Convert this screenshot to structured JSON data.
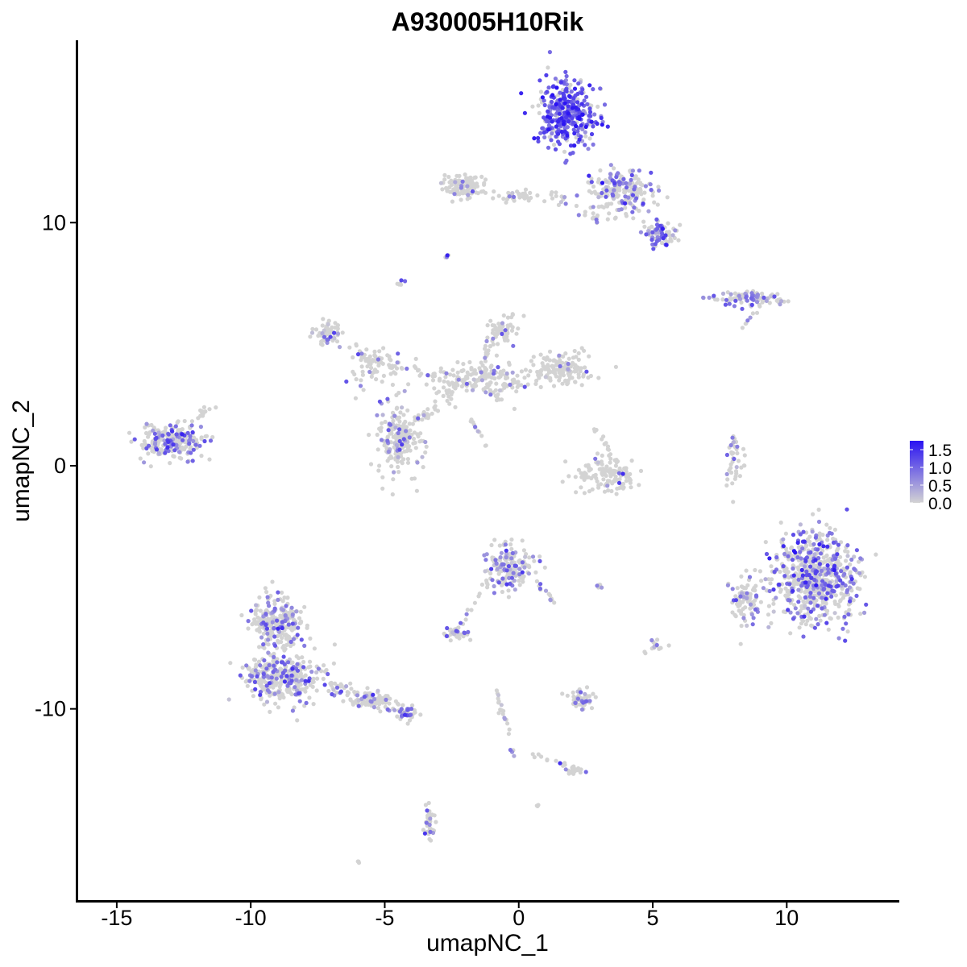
{
  "chart_data": {
    "type": "scatter",
    "title": "A930005H10Rik",
    "xlabel": "umapNC_1",
    "ylabel": "umapNC_2",
    "xlim": [
      -16.5,
      14.2
    ],
    "ylim": [
      -17.9,
      17.5
    ],
    "x_ticks": [
      -15,
      -10,
      -5,
      0,
      5,
      10
    ],
    "y_ticks": [
      -10,
      0,
      10
    ],
    "grid": false,
    "legend": {
      "position": "right",
      "type": "colorbar",
      "ticks": [
        1.5,
        1.0,
        0.5,
        0.0
      ],
      "tick_labels": [
        "1.5",
        "1.0",
        "0.5",
        "0.0"
      ],
      "range": [
        0,
        1.75
      ]
    },
    "color_scale": {
      "low": "#d3d3d3",
      "high": "#2a13f2"
    },
    "seed": 42,
    "clusters": [
      {
        "cx": 1.8,
        "cy": 14.5,
        "sx": 1.0,
        "sy": 1.2,
        "n": 360,
        "expr_frac": 0.8,
        "expr_mean": 1.1
      },
      {
        "cx": 3.8,
        "cy": 11.2,
        "sx": 1.0,
        "sy": 0.8,
        "n": 200,
        "expr_frac": 0.35,
        "expr_mean": 0.8
      },
      {
        "cx": 5.3,
        "cy": 9.5,
        "sx": 0.5,
        "sy": 0.5,
        "n": 80,
        "expr_frac": 0.4,
        "expr_mean": 0.8
      },
      {
        "cx": -2.1,
        "cy": 11.5,
        "sx": 0.6,
        "sy": 0.4,
        "n": 90,
        "expr_frac": 0.12,
        "expr_mean": 0.7
      },
      {
        "cx": 0.0,
        "cy": 11.1,
        "sx": 0.7,
        "sy": 0.2,
        "n": 30,
        "expr_frac": 0.1,
        "expr_mean": 0.7
      },
      {
        "cx": 8.5,
        "cy": 6.9,
        "sx": 1.1,
        "sy": 0.25,
        "n": 100,
        "expr_frac": 0.4,
        "expr_mean": 0.7
      },
      {
        "cx": -7.1,
        "cy": 5.4,
        "sx": 0.5,
        "sy": 0.5,
        "n": 60,
        "expr_frac": 0.2,
        "expr_mean": 0.7
      },
      {
        "cx": -5.4,
        "cy": 4.0,
        "sx": 0.8,
        "sy": 0.6,
        "n": 60,
        "expr_frac": 0.15,
        "expr_mean": 0.7
      },
      {
        "cx": -1.3,
        "cy": 3.5,
        "sx": 1.5,
        "sy": 0.7,
        "n": 160,
        "expr_frac": 0.08,
        "expr_mean": 0.7
      },
      {
        "cx": -0.6,
        "cy": 5.5,
        "sx": 0.45,
        "sy": 0.5,
        "n": 55,
        "expr_frac": 0.1,
        "expr_mean": 0.7
      },
      {
        "cx": 1.6,
        "cy": 4.0,
        "sx": 1.0,
        "sy": 0.5,
        "n": 150,
        "expr_frac": 0.05,
        "expr_mean": 0.6
      },
      {
        "cx": -4.5,
        "cy": 1.0,
        "sx": 0.7,
        "sy": 1.2,
        "n": 200,
        "expr_frac": 0.18,
        "expr_mean": 0.7
      },
      {
        "cx": -13.0,
        "cy": 1.0,
        "sx": 1.0,
        "sy": 0.55,
        "n": 230,
        "expr_frac": 0.28,
        "expr_mean": 0.8
      },
      {
        "cx": 3.3,
        "cy": -0.4,
        "sx": 1.0,
        "sy": 0.65,
        "n": 130,
        "expr_frac": 0.07,
        "expr_mean": 0.7
      },
      {
        "cx": 8.1,
        "cy": 0.0,
        "sx": 0.25,
        "sy": 0.9,
        "n": 30,
        "expr_frac": 0.25,
        "expr_mean": 0.7
      },
      {
        "cx": 11.0,
        "cy": -4.6,
        "sx": 1.4,
        "sy": 1.5,
        "n": 700,
        "expr_frac": 0.33,
        "expr_mean": 0.9
      },
      {
        "cx": 8.4,
        "cy": -5.5,
        "sx": 0.5,
        "sy": 1.0,
        "n": 80,
        "expr_frac": 0.3,
        "expr_mean": 0.8
      },
      {
        "cx": -0.3,
        "cy": -4.2,
        "sx": 0.8,
        "sy": 0.8,
        "n": 160,
        "expr_frac": 0.35,
        "expr_mean": 0.8
      },
      {
        "cx": -2.4,
        "cy": -6.9,
        "sx": 0.35,
        "sy": 0.2,
        "n": 35,
        "expr_frac": 0.3,
        "expr_mean": 0.8
      },
      {
        "cx": -9.0,
        "cy": -6.5,
        "sx": 0.8,
        "sy": 0.8,
        "n": 200,
        "expr_frac": 0.3,
        "expr_mean": 0.8
      },
      {
        "cx": -8.8,
        "cy": -8.7,
        "sx": 1.1,
        "sy": 0.8,
        "n": 320,
        "expr_frac": 0.3,
        "expr_mean": 0.8
      },
      {
        "cx": -5.5,
        "cy": -9.6,
        "sx": 0.6,
        "sy": 0.3,
        "n": 60,
        "expr_frac": 0.15,
        "expr_mean": 0.7
      },
      {
        "cx": -4.2,
        "cy": -10.2,
        "sx": 0.3,
        "sy": 0.2,
        "n": 20,
        "expr_frac": 0.4,
        "expr_mean": 0.8
      },
      {
        "cx": 2.3,
        "cy": -9.6,
        "sx": 0.4,
        "sy": 0.3,
        "n": 55,
        "expr_frac": 0.2,
        "expr_mean": 0.7
      },
      {
        "cx": 2.1,
        "cy": -12.6,
        "sx": 0.3,
        "sy": 0.15,
        "n": 15,
        "expr_frac": 0.1,
        "expr_mean": 0.7
      },
      {
        "cx": -3.3,
        "cy": -14.8,
        "sx": 0.15,
        "sy": 0.4,
        "n": 28,
        "expr_frac": 0.15,
        "expr_mean": 0.7
      },
      {
        "cx": -2.7,
        "cy": 8.6,
        "sx": 0.08,
        "sy": 0.08,
        "n": 6,
        "expr_frac": 0.1,
        "expr_mean": 0.7
      },
      {
        "cx": -4.4,
        "cy": 7.5,
        "sx": 0.1,
        "sy": 0.1,
        "n": 7,
        "expr_frac": 0.2,
        "expr_mean": 0.7
      },
      {
        "cx": 5.1,
        "cy": -7.3,
        "sx": 0.15,
        "sy": 0.15,
        "n": 10,
        "expr_frac": 0.1,
        "expr_mean": 0.7
      },
      {
        "cx": 3.0,
        "cy": -5.0,
        "sx": 0.1,
        "sy": 0.08,
        "n": 6,
        "expr_frac": 0.5,
        "expr_mean": 0.9
      },
      {
        "cx": -6.0,
        "cy": -16.3,
        "sx": 0.05,
        "sy": 0.05,
        "n": 3,
        "expr_frac": 0.3,
        "expr_mean": 0.7
      },
      {
        "cx": 0.7,
        "cy": -14.0,
        "sx": 0.05,
        "sy": 0.05,
        "n": 3,
        "expr_frac": 0.3,
        "expr_mean": 0.7
      }
    ],
    "segments": [
      {
        "from": [
          -2.2,
          3.3
        ],
        "to": [
          -4.5,
          1.2
        ],
        "n": 45,
        "spread": 0.25,
        "expr_frac": 0.1,
        "expr_mean": 0.7
      },
      {
        "from": [
          -2.4,
          3.4
        ],
        "to": [
          -6.5,
          4.8
        ],
        "n": 40,
        "spread": 0.22,
        "expr_frac": 0.1,
        "expr_mean": 0.7
      },
      {
        "from": [
          -1.8,
          2.0
        ],
        "to": [
          -1.2,
          0.7
        ],
        "n": 12,
        "spread": 0.08,
        "expr_frac": 0.15,
        "expr_mean": 0.7
      },
      {
        "from": [
          -1.6,
          3.5
        ],
        "to": [
          -1.0,
          5.3
        ],
        "n": 20,
        "spread": 0.2,
        "expr_frac": 0.1,
        "expr_mean": 0.7
      },
      {
        "from": [
          -3.0,
          11.5
        ],
        "to": [
          0.0,
          11.0
        ],
        "n": 22,
        "spread": 0.2,
        "expr_frac": 0.1,
        "expr_mean": 0.7
      },
      {
        "from": [
          1.0,
          11.3
        ],
        "to": [
          3.0,
          10.1
        ],
        "n": 22,
        "spread": 0.25,
        "expr_frac": 0.15,
        "expr_mean": 0.7
      },
      {
        "from": [
          -7.2,
          -9.0
        ],
        "to": [
          -4.0,
          -10.3
        ],
        "n": 80,
        "spread": 0.4,
        "expr_frac": 0.2,
        "expr_mean": 0.7
      },
      {
        "from": [
          -9.3,
          -5.2
        ],
        "to": [
          -9.3,
          -9.8
        ],
        "n": 70,
        "spread": 0.6,
        "expr_frac": 0.2,
        "expr_mean": 0.8
      },
      {
        "from": [
          -0.8,
          -9.2
        ],
        "to": [
          -0.2,
          -12.0
        ],
        "n": 22,
        "spread": 0.12,
        "expr_frac": 0.2,
        "expr_mean": 0.7
      },
      {
        "from": [
          0.3,
          -11.8
        ],
        "to": [
          2.3,
          -12.5
        ],
        "n": 18,
        "spread": 0.1,
        "expr_frac": 0.1,
        "expr_mean": 0.7
      },
      {
        "from": [
          0.7,
          -4.8
        ],
        "to": [
          1.3,
          -5.6
        ],
        "n": 12,
        "spread": 0.1,
        "expr_frac": 0.2,
        "expr_mean": 0.7
      },
      {
        "from": [
          -1.2,
          -4.8
        ],
        "to": [
          -2.4,
          -7.0
        ],
        "n": 15,
        "spread": 0.1,
        "expr_frac": 0.3,
        "expr_mean": 0.8
      },
      {
        "from": [
          8.0,
          1.4
        ],
        "to": [
          7.8,
          -0.8
        ],
        "n": 10,
        "spread": 0.08,
        "expr_frac": 0.3,
        "expr_mean": 0.7
      },
      {
        "from": [
          2.8,
          1.6
        ],
        "to": [
          3.7,
          0.0
        ],
        "n": 15,
        "spread": 0.15,
        "expr_frac": 0.1,
        "expr_mean": 0.7
      },
      {
        "from": [
          -13.0,
          1.3
        ],
        "to": [
          -11.3,
          2.5
        ],
        "n": 22,
        "spread": 0.2,
        "expr_frac": 0.2,
        "expr_mean": 0.7
      },
      {
        "from": [
          -3.4,
          -13.8
        ],
        "to": [
          -3.4,
          -15.4
        ],
        "n": 12,
        "spread": 0.1,
        "expr_frac": 0.1,
        "expr_mean": 0.7
      },
      {
        "from": [
          9.2,
          6.9
        ],
        "to": [
          8.3,
          5.7
        ],
        "n": 10,
        "spread": 0.1,
        "expr_frac": 0.2,
        "expr_mean": 0.7
      },
      {
        "from": [
          5.9,
          -7.3
        ],
        "to": [
          4.6,
          -7.7
        ],
        "n": 6,
        "spread": 0.1,
        "expr_frac": 0.1,
        "expr_mean": 0.7
      }
    ]
  }
}
